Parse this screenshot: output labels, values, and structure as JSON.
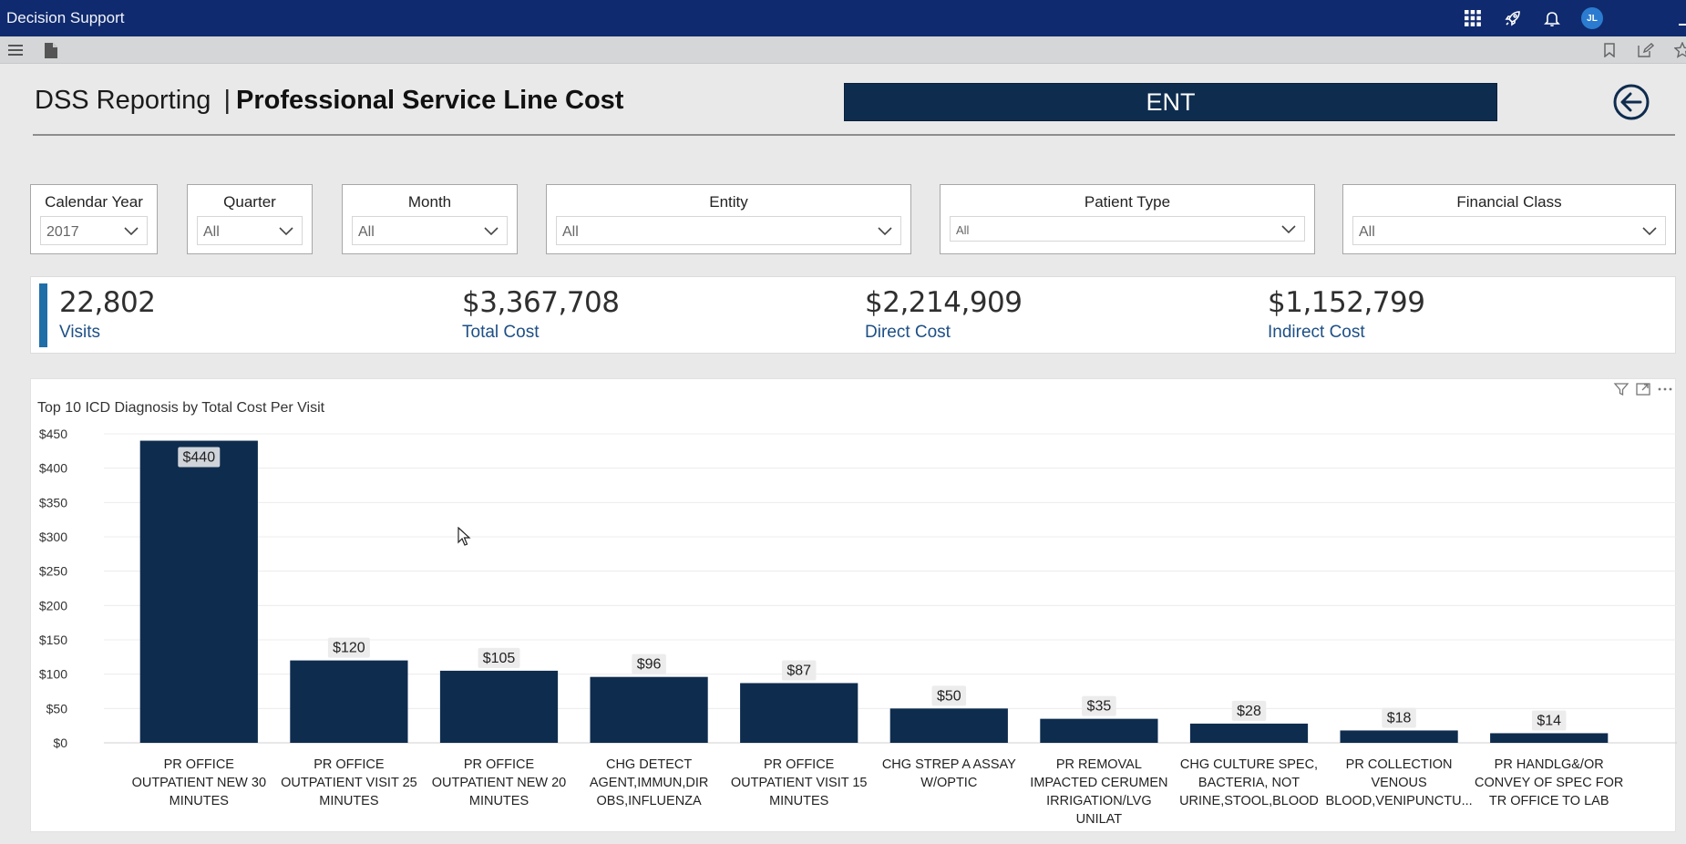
{
  "app": {
    "title": "Decision Support",
    "user_initials": "JL"
  },
  "header": {
    "title_lead": "DSS Reporting",
    "title_sep": "|",
    "title_main": "Professional Service Line Cost",
    "service_line": "ENT"
  },
  "filters": [
    {
      "label": "Calendar Year",
      "value": "2017"
    },
    {
      "label": "Quarter",
      "value": "All"
    },
    {
      "label": "Month",
      "value": "All"
    },
    {
      "label": "Entity",
      "value": "All"
    },
    {
      "label": "Patient Type",
      "value": "All"
    },
    {
      "label": "Financial Class",
      "value": "All"
    }
  ],
  "kpis": [
    {
      "value": "22,802",
      "label": "Visits"
    },
    {
      "value": "$3,367,708",
      "label": "Total Cost"
    },
    {
      "value": "$2,214,909",
      "label": "Direct Cost"
    },
    {
      "value": "$1,152,799",
      "label": "Indirect Cost"
    }
  ],
  "colors": {
    "bar": "#0e2c4e",
    "banner": "#0e2c4e",
    "topbar": "#0f2a6e",
    "kpi_label": "#1d4f86"
  },
  "chart_data": {
    "type": "bar",
    "title": "Top 10 ICD Diagnosis by Total Cost Per Visit",
    "xlabel": "",
    "ylabel": "",
    "ylim": [
      0,
      450
    ],
    "yticks": [
      "$0",
      "$50",
      "$100",
      "$150",
      "$200",
      "$250",
      "$300",
      "$350",
      "$400",
      "$450"
    ],
    "categories": [
      [
        "PR OFFICE",
        "OUTPATIENT NEW 30",
        "MINUTES"
      ],
      [
        "PR OFFICE",
        "OUTPATIENT VISIT 25",
        "MINUTES"
      ],
      [
        "PR OFFICE",
        "OUTPATIENT NEW 20",
        "MINUTES"
      ],
      [
        "CHG DETECT",
        "AGENT,IMMUN,DIR",
        "OBS,INFLUENZA"
      ],
      [
        "PR OFFICE",
        "OUTPATIENT VISIT 15",
        "MINUTES"
      ],
      [
        "CHG STREP A ASSAY",
        "W/OPTIC"
      ],
      [
        "PR REMOVAL",
        "IMPACTED CERUMEN",
        "IRRIGATION/LVG",
        "UNILAT"
      ],
      [
        "CHG CULTURE SPEC,",
        "BACTERIA, NOT",
        "URINE,STOOL,BLOOD"
      ],
      [
        "PR COLLECTION",
        "VENOUS",
        "BLOOD,VENIPUNCTU..."
      ],
      [
        "PR HANDLG&/OR",
        "CONVEY OF SPEC FOR",
        "TR OFFICE TO LAB"
      ]
    ],
    "values": [
      440,
      120,
      105,
      96,
      87,
      50,
      35,
      28,
      18,
      14
    ],
    "data_labels": [
      "$440",
      "$120",
      "$105",
      "$96",
      "$87",
      "$50",
      "$35",
      "$28",
      "$18",
      "$14"
    ],
    "grid": true,
    "legend": "none"
  }
}
